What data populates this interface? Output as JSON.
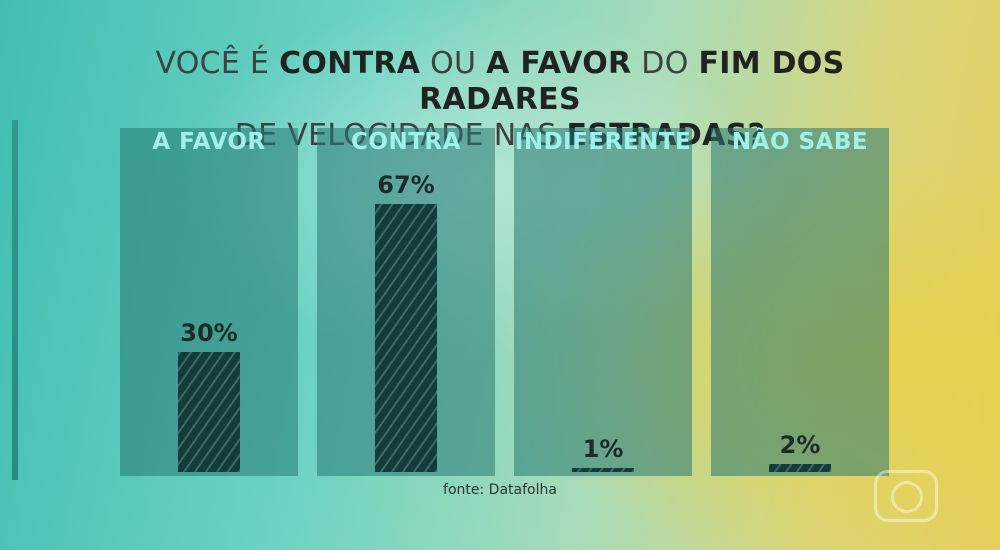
{
  "title": {
    "parts": [
      {
        "text": "VOCÊ É ",
        "bold": false
      },
      {
        "text": "CONTRA",
        "bold": true
      },
      {
        "text": " OU ",
        "bold": false
      },
      {
        "text": "A FAVOR",
        "bold": true
      },
      {
        "text": " DO ",
        "bold": false
      },
      {
        "text": "FIM DOS RADARES",
        "bold": true
      },
      {
        "text": " DE VELOCIDADE NAS ",
        "bold": false
      },
      {
        "text": "ESTRADAS?",
        "bold": true
      }
    ]
  },
  "source": "fonte: Datafolha",
  "colors": {
    "label": "#9ff2ea",
    "bar": "#153a3a",
    "panel": "#287873"
  },
  "chart_data": {
    "type": "bar",
    "categories": [
      "A FAVOR",
      "CONTRA",
      "INDIFERENTE",
      "NÃO SABE"
    ],
    "values": [
      30,
      67,
      1,
      2
    ],
    "value_labels": [
      "30%",
      "67%",
      "1%",
      "2%"
    ],
    "ylim": [
      0,
      100
    ],
    "grid": false,
    "legend": "none"
  }
}
